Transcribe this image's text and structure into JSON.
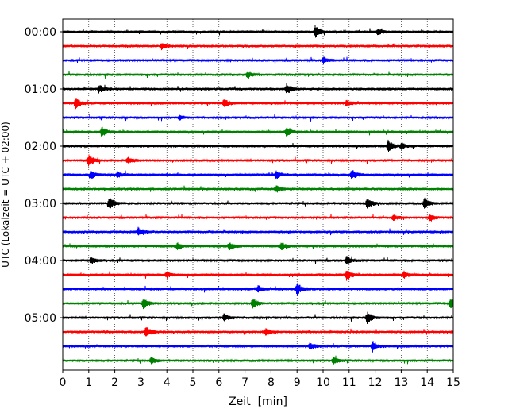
{
  "chart_data": {
    "type": "line",
    "title": "",
    "xlabel": "Zeit  [min]",
    "ylabel": "UTC (Lokalzeit = UTC + 02:00)",
    "xlim": [
      0,
      15
    ],
    "x_ticks": [
      "0",
      "1",
      "2",
      "3",
      "4",
      "5",
      "6",
      "7",
      "8",
      "9",
      "10",
      "11",
      "12",
      "13",
      "14",
      "15"
    ],
    "y_ticks": [
      "00:00",
      "01:00",
      "02:00",
      "03:00",
      "04:00",
      "05:00"
    ],
    "row_interval_min": 15,
    "rows": 24,
    "row_colors": [
      "#000000",
      "#ff0000",
      "#0000ff",
      "#008000"
    ],
    "grid": "vertical dotted at each minute",
    "events": [
      {
        "row": 0,
        "x": 9.7,
        "amp": 0.9
      },
      {
        "row": 0,
        "x": 12.1,
        "amp": 0.4
      },
      {
        "row": 1,
        "x": 3.8,
        "amp": 0.5
      },
      {
        "row": 2,
        "x": 10.0,
        "amp": 0.5
      },
      {
        "row": 3,
        "x": 7.1,
        "amp": 0.4
      },
      {
        "row": 4,
        "x": 1.4,
        "amp": 0.6
      },
      {
        "row": 4,
        "x": 8.6,
        "amp": 0.8
      },
      {
        "row": 5,
        "x": 0.5,
        "amp": 0.9
      },
      {
        "row": 5,
        "x": 6.2,
        "amp": 0.7
      },
      {
        "row": 5,
        "x": 10.9,
        "amp": 0.5
      },
      {
        "row": 6,
        "x": 4.5,
        "amp": 0.3
      },
      {
        "row": 7,
        "x": 1.5,
        "amp": 0.8
      },
      {
        "row": 7,
        "x": 8.6,
        "amp": 0.7
      },
      {
        "row": 8,
        "x": 12.5,
        "amp": 1.0
      },
      {
        "row": 8,
        "x": 13.0,
        "amp": 0.5
      },
      {
        "row": 9,
        "x": 1.0,
        "amp": 0.9
      },
      {
        "row": 9,
        "x": 2.5,
        "amp": 0.5
      },
      {
        "row": 10,
        "x": 1.1,
        "amp": 0.6
      },
      {
        "row": 10,
        "x": 2.1,
        "amp": 0.5
      },
      {
        "row": 10,
        "x": 8.2,
        "amp": 0.6
      },
      {
        "row": 10,
        "x": 11.1,
        "amp": 0.8
      },
      {
        "row": 11,
        "x": 8.2,
        "amp": 0.5
      },
      {
        "row": 12,
        "x": 1.8,
        "amp": 1.0
      },
      {
        "row": 12,
        "x": 11.7,
        "amp": 0.9
      },
      {
        "row": 12,
        "x": 13.9,
        "amp": 0.8
      },
      {
        "row": 13,
        "x": 12.7,
        "amp": 0.4
      },
      {
        "row": 13,
        "x": 14.1,
        "amp": 0.5
      },
      {
        "row": 14,
        "x": 2.9,
        "amp": 0.7
      },
      {
        "row": 15,
        "x": 4.4,
        "amp": 0.5
      },
      {
        "row": 15,
        "x": 6.4,
        "amp": 0.6
      },
      {
        "row": 15,
        "x": 8.4,
        "amp": 0.6
      },
      {
        "row": 16,
        "x": 1.1,
        "amp": 0.5
      },
      {
        "row": 16,
        "x": 10.9,
        "amp": 0.7
      },
      {
        "row": 17,
        "x": 4.0,
        "amp": 0.5
      },
      {
        "row": 17,
        "x": 10.9,
        "amp": 0.8
      },
      {
        "row": 17,
        "x": 13.1,
        "amp": 0.5
      },
      {
        "row": 18,
        "x": 9.0,
        "amp": 1.0
      },
      {
        "row": 18,
        "x": 7.5,
        "amp": 0.5
      },
      {
        "row": 19,
        "x": 3.1,
        "amp": 0.8
      },
      {
        "row": 19,
        "x": 7.3,
        "amp": 0.8
      },
      {
        "row": 19,
        "x": 14.9,
        "amp": 0.7
      },
      {
        "row": 20,
        "x": 6.2,
        "amp": 0.6
      },
      {
        "row": 20,
        "x": 11.7,
        "amp": 0.9
      },
      {
        "row": 21,
        "x": 3.2,
        "amp": 0.8
      },
      {
        "row": 21,
        "x": 7.8,
        "amp": 0.5
      },
      {
        "row": 22,
        "x": 9.5,
        "amp": 0.5
      },
      {
        "row": 22,
        "x": 11.9,
        "amp": 0.8
      },
      {
        "row": 23,
        "x": 3.4,
        "amp": 0.5
      },
      {
        "row": 23,
        "x": 10.4,
        "amp": 0.5
      }
    ]
  }
}
